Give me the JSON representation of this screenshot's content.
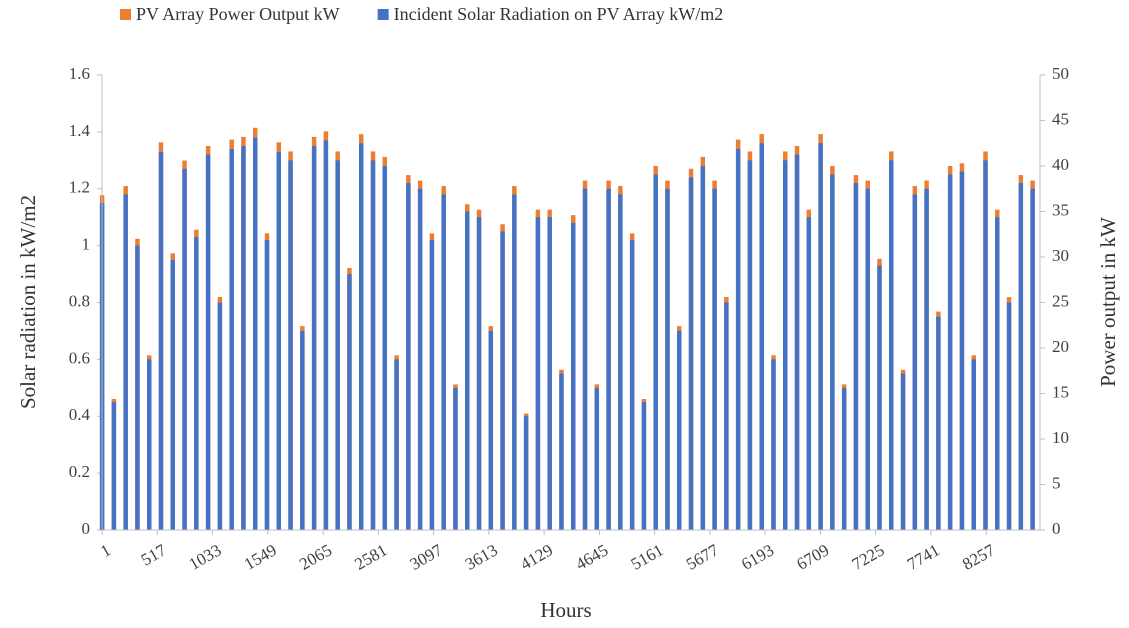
{
  "chart_data": {
    "type": "bar",
    "y_label": "Solar radiation in kW/m2",
    "y2_label": "Power output in kW",
    "x_label": "Hours",
    "legend": "top",
    "x": [
      1,
      111,
      221,
      331,
      441,
      551,
      661,
      771,
      881,
      991,
      1101,
      1211,
      1321,
      1431,
      1541,
      1651,
      1761,
      1871,
      1981,
      2091,
      2201,
      2311,
      2421,
      2531,
      2641,
      2751,
      2861,
      2971,
      3081,
      3191,
      3301,
      3411,
      3521,
      3631,
      3741,
      3851,
      3961,
      4071,
      4181,
      4291,
      4401,
      4511,
      4621,
      4731,
      4841,
      4951,
      5061,
      5171,
      5281,
      5391,
      5501,
      5611,
      5721,
      5831,
      5941,
      6051,
      6161,
      6271,
      6381,
      6491,
      6601,
      6711,
      6821,
      6931,
      7041,
      7151,
      7261,
      7371,
      7481,
      7591,
      7701,
      7811,
      7921,
      8031,
      8141,
      8251,
      8361,
      8471,
      8581,
      8691
    ],
    "series": [
      {
        "name": "PV Array Power Output kW",
        "color": "#ed7d31",
        "axis": "y2",
        "values": [
          36.8,
          14.4,
          37.8,
          32,
          19.2,
          42.6,
          30.4,
          40.6,
          33,
          42.2,
          25.6,
          42.9,
          43.2,
          44.2,
          32.6,
          42.6,
          41.6,
          22.4,
          43.2,
          43.8,
          41.6,
          28.8,
          43.5,
          41.6,
          41,
          19.2,
          39,
          38.4,
          32.6,
          37.8,
          16,
          35.8,
          35.2,
          22.4,
          33.6,
          37.8,
          12.8,
          35.2,
          35.2,
          17.6,
          34.6,
          38.4,
          16,
          38.4,
          37.8,
          32.6,
          14.4,
          40,
          38.4,
          22.4,
          39.7,
          41,
          38.4,
          25.6,
          42.9,
          41.6,
          43.5,
          19.2,
          41.6,
          42.2,
          35.2,
          43.5,
          40,
          16,
          39,
          38.4,
          29.8,
          41.6,
          17.6,
          37.8,
          38.4,
          24,
          40,
          40.3,
          19.2,
          41.6,
          35.2,
          25.6,
          39,
          38.4
        ]
      },
      {
        "name": "Incident Solar Radiation on PV Array kW/m2",
        "color": "#4472c4",
        "axis": "y",
        "values": [
          1.15,
          0.45,
          1.18,
          1.0,
          0.6,
          1.33,
          0.95,
          1.27,
          1.03,
          1.32,
          0.8,
          1.34,
          1.35,
          1.38,
          1.02,
          1.33,
          1.3,
          0.7,
          1.35,
          1.37,
          1.3,
          0.9,
          1.36,
          1.3,
          1.28,
          0.6,
          1.22,
          1.2,
          1.02,
          1.18,
          0.5,
          1.12,
          1.1,
          0.7,
          1.05,
          1.18,
          0.4,
          1.1,
          1.1,
          0.55,
          1.08,
          1.2,
          0.5,
          1.2,
          1.18,
          1.02,
          0.45,
          1.25,
          1.2,
          0.7,
          1.24,
          1.28,
          1.2,
          0.8,
          1.34,
          1.3,
          1.36,
          0.6,
          1.3,
          1.32,
          1.1,
          1.36,
          1.25,
          0.5,
          1.22,
          1.2,
          0.93,
          1.3,
          0.55,
          1.18,
          1.2,
          0.75,
          1.25,
          1.26,
          0.6,
          1.3,
          1.1,
          0.8,
          1.22,
          1.2
        ]
      }
    ],
    "xlim": [
      0,
      8760
    ],
    "xticks": [
      1,
      517,
      1033,
      1549,
      2065,
      2581,
      3097,
      3613,
      4129,
      4645,
      5161,
      5677,
      6193,
      6709,
      7225,
      7741,
      8257
    ],
    "ylim": [
      0,
      1.6
    ],
    "yticks": [
      0,
      0.2,
      0.4,
      0.6,
      0.8,
      1,
      1.2,
      1.4,
      1.6
    ],
    "y2lim": [
      0,
      50
    ],
    "y2ticks": [
      0,
      5,
      10,
      15,
      20,
      25,
      30,
      35,
      40,
      45,
      50
    ]
  }
}
